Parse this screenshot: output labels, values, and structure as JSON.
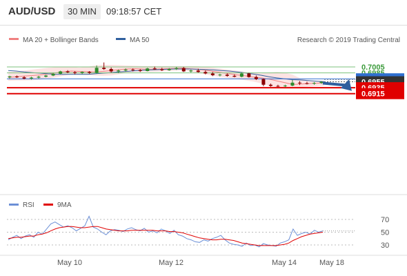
{
  "header": {
    "pair": "AUD/USD",
    "timeframe": "30 MIN",
    "time": "09:18:57 CET"
  },
  "legend": {
    "bollinger_label": "MA 20 + Bollinger Bands",
    "ma50_label": "MA 50",
    "copyright": "Research © 2019 Trading Central",
    "rsi_label": "RSI",
    "ma9_label": "9MA"
  },
  "colors": {
    "bollinger": "#f08080",
    "bollinger_band_fill": "#fde3e3",
    "ma50": "#2f5f9e",
    "candle_up": "#2e8b2e",
    "candle_down": "#8b0000",
    "resistance_green": "#7cc27c",
    "pivot_blue": "#2f6fd0",
    "support_red": "#e00000",
    "rsi_line": "#6b8fd6",
    "ma9_line": "#e00000",
    "forecast_arrow": "#2f5f9e"
  },
  "chart_data": [
    {
      "type": "candlestick",
      "title": "AUD/USD 30 MIN",
      "y_ticks": [
        0.7005,
        0.6985
      ],
      "ylim": [
        0.6907,
        0.7035
      ],
      "x_ticks": [
        "May 10",
        "May 12",
        "May 14",
        "May 18"
      ],
      "current_price": 0.6955,
      "levels": [
        {
          "value": 0.7005,
          "label": "0.7005",
          "kind": "resistance",
          "color": "#7cc27c"
        },
        {
          "value": 0.6985,
          "label": "0.6985",
          "kind": "resistance",
          "color": "#7cc27c"
        },
        {
          "value": 0.6965,
          "label": "0.6965",
          "kind": "pivot",
          "color": "#2f6fd0"
        },
        {
          "value": 0.6955,
          "label": "0.6955",
          "kind": "last",
          "color": "#333333"
        },
        {
          "value": 0.6935,
          "label": "0.6935",
          "kind": "support",
          "color": "#e00000"
        },
        {
          "value": 0.6915,
          "label": "0.6915",
          "kind": "support",
          "color": "#e00000"
        }
      ],
      "forecast_arrow": {
        "from": 0.6955,
        "to": 0.6915
      },
      "series": [
        {
          "name": "MA 20 + Bollinger Bands",
          "ma": [
            0.697,
            0.6972,
            0.6974,
            0.6976,
            0.6978,
            0.6981,
            0.6985,
            0.6989,
            0.6991,
            0.699,
            0.6989,
            0.6988,
            0.699,
            0.6993,
            0.6996,
            0.6998,
            0.6999,
            0.6998,
            0.6997,
            0.6998,
            0.6999,
            0.7,
            0.7001,
            0.6999,
            0.6997,
            0.6994,
            0.699,
            0.6986,
            0.6982,
            0.6978,
            0.6975,
            0.6971,
            0.6968,
            0.6964,
            0.6958,
            0.6952,
            0.6946,
            0.6947,
            0.6949,
            0.695,
            0.6952
          ],
          "upper": [
            0.6988,
            0.699,
            0.6993,
            0.6996,
            0.6999,
            0.7002,
            0.7004,
            0.7005,
            0.7005,
            0.7003,
            0.7005,
            0.701,
            0.7012,
            0.7012,
            0.7011,
            0.701,
            0.7009,
            0.7008,
            0.7008,
            0.7008,
            0.7008,
            0.7008,
            0.7008,
            0.7008,
            0.7007,
            0.7005,
            0.7002,
            0.6999,
            0.6995,
            0.6992,
            0.6988,
            0.6985,
            0.6983,
            0.6986,
            0.6988,
            0.6986,
            0.6979,
            0.6966,
            0.696,
            0.6958,
            0.6959
          ],
          "lower": [
            0.6958,
            0.6959,
            0.6959,
            0.696,
            0.6962,
            0.6966,
            0.697,
            0.6975,
            0.698,
            0.698,
            0.6978,
            0.6976,
            0.6975,
            0.6976,
            0.698,
            0.6986,
            0.6988,
            0.6989,
            0.6988,
            0.6989,
            0.6991,
            0.6992,
            0.6994,
            0.699,
            0.6985,
            0.698,
            0.6975,
            0.6971,
            0.6968,
            0.6964,
            0.696,
            0.6956,
            0.695,
            0.6942,
            0.6935,
            0.6932,
            0.6932,
            0.6935,
            0.6938,
            0.694,
            0.6942
          ]
        },
        {
          "name": "MA 50",
          "values": [
            0.6993,
            0.6991,
            0.6988,
            0.6986,
            0.6984,
            0.6982,
            0.698,
            0.698,
            0.698,
            0.698,
            0.698,
            0.6982,
            0.6984,
            0.6986,
            0.6988,
            0.699,
            0.6992,
            0.6994,
            0.6995,
            0.6996,
            0.6997,
            0.6998,
            0.6998,
            0.6998,
            0.6997,
            0.6996,
            0.6995,
            0.6993,
            0.6991,
            0.6988,
            0.6985,
            0.6981,
            0.6977,
            0.6972,
            0.6968,
            0.6965,
            0.6962,
            0.6961,
            0.6959,
            0.6957,
            0.6955
          ]
        }
      ],
      "candles": [
        [
          0.697,
          0.6975,
          0.6966,
          0.6973
        ],
        [
          0.6973,
          0.6976,
          0.6968,
          0.697
        ],
        [
          0.697,
          0.6974,
          0.6963,
          0.6966
        ],
        [
          0.6966,
          0.6972,
          0.6962,
          0.6969
        ],
        [
          0.6969,
          0.6975,
          0.6966,
          0.6972
        ],
        [
          0.6972,
          0.6978,
          0.697,
          0.6976
        ],
        [
          0.6976,
          0.6985,
          0.6974,
          0.6982
        ],
        [
          0.6982,
          0.6992,
          0.698,
          0.699
        ],
        [
          0.699,
          0.6994,
          0.6984,
          0.6987
        ],
        [
          0.6987,
          0.6991,
          0.698,
          0.6984
        ],
        [
          0.6984,
          0.699,
          0.6981,
          0.6988
        ],
        [
          0.6988,
          0.6991,
          0.6982,
          0.6985
        ],
        [
          0.6985,
          0.701,
          0.6983,
          0.7002
        ],
        [
          0.7002,
          0.702,
          0.6995,
          0.6998
        ],
        [
          0.6998,
          0.7003,
          0.6986,
          0.699
        ],
        [
          0.699,
          0.6996,
          0.6984,
          0.6993
        ],
        [
          0.6993,
          0.7,
          0.6989,
          0.6996
        ],
        [
          0.6996,
          0.7,
          0.699,
          0.6994
        ],
        [
          0.6994,
          0.6998,
          0.6988,
          0.6991
        ],
        [
          0.6991,
          0.7002,
          0.699,
          0.7
        ],
        [
          0.7,
          0.7006,
          0.6995,
          0.6997
        ],
        [
          0.6997,
          0.7002,
          0.6991,
          0.6994
        ],
        [
          0.6994,
          0.7001,
          0.6992,
          0.6998
        ],
        [
          0.6998,
          0.7005,
          0.6995,
          0.7001
        ],
        [
          0.7001,
          0.7005,
          0.6988,
          0.699
        ],
        [
          0.699,
          0.6996,
          0.6986,
          0.6993
        ],
        [
          0.6993,
          0.6999,
          0.6986,
          0.6988
        ],
        [
          0.6988,
          0.6993,
          0.698,
          0.6983
        ],
        [
          0.6983,
          0.6988,
          0.6974,
          0.6977
        ],
        [
          0.6977,
          0.6982,
          0.6973,
          0.6979
        ],
        [
          0.6979,
          0.6983,
          0.6972,
          0.6975
        ],
        [
          0.6975,
          0.698,
          0.697,
          0.6972
        ],
        [
          0.6972,
          0.6986,
          0.697,
          0.6983
        ],
        [
          0.6983,
          0.6985,
          0.6969,
          0.6971
        ],
        [
          0.6971,
          0.6976,
          0.6961,
          0.6964
        ],
        [
          0.6964,
          0.6966,
          0.694,
          0.6945
        ],
        [
          0.6945,
          0.6949,
          0.6938,
          0.6941
        ],
        [
          0.6941,
          0.6945,
          0.6937,
          0.694
        ],
        [
          0.694,
          0.6945,
          0.6937,
          0.6942
        ],
        [
          0.6942,
          0.6961,
          0.694,
          0.6952
        ],
        [
          0.6952,
          0.6957,
          0.6944,
          0.695
        ],
        [
          0.695,
          0.6955,
          0.6946,
          0.6949
        ],
        [
          0.6949,
          0.6954,
          0.6945,
          0.6951
        ],
        [
          0.6951,
          0.6957,
          0.6948,
          0.6955
        ]
      ]
    },
    {
      "type": "line",
      "title": "RSI",
      "y_ticks": [
        70,
        50,
        30
      ],
      "ylim": [
        15,
        85
      ],
      "series": [
        {
          "name": "RSI",
          "values": [
            38,
            42,
            45,
            40,
            44,
            46,
            42,
            50,
            47,
            55,
            63,
            66,
            62,
            58,
            60,
            57,
            52,
            56,
            60,
            75,
            58,
            55,
            50,
            46,
            52,
            54,
            53,
            51,
            55,
            57,
            54,
            52,
            56,
            50,
            52,
            49,
            55,
            52,
            48,
            53,
            46,
            44,
            40,
            38,
            35,
            34,
            38,
            36,
            40,
            42,
            45,
            38,
            33,
            31,
            30,
            28,
            33,
            29,
            30,
            27,
            32,
            30,
            29,
            28,
            33,
            35,
            38,
            55,
            45,
            48,
            50,
            47,
            53,
            50,
            52
          ]
        },
        {
          "name": "9MA",
          "values": [
            40,
            41,
            42,
            42,
            43,
            44,
            44,
            46,
            47,
            49,
            52,
            55,
            57,
            58,
            59,
            59,
            58,
            57,
            57,
            58,
            59,
            59,
            57,
            55,
            54,
            53,
            52,
            52,
            52,
            53,
            53,
            53,
            53,
            53,
            53,
            52,
            52,
            52,
            51,
            51,
            50,
            49,
            47,
            45,
            43,
            41,
            40,
            39,
            38,
            38,
            39,
            39,
            38,
            37,
            35,
            33,
            32,
            31,
            30,
            29,
            29,
            29,
            29,
            29,
            30,
            31,
            33,
            37,
            40,
            43,
            45,
            47,
            48,
            49,
            50
          ]
        }
      ]
    }
  ]
}
